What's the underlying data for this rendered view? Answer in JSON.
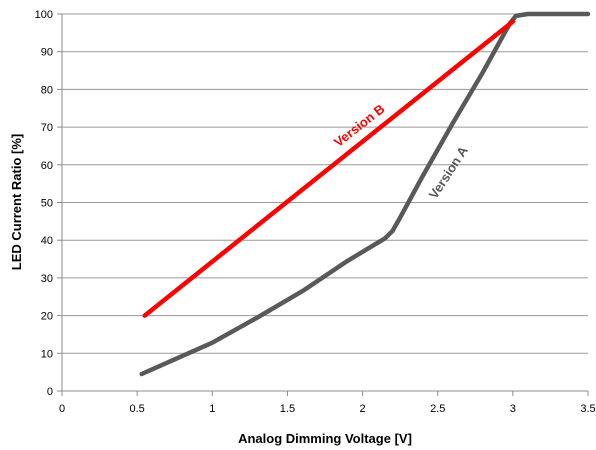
{
  "chart_data": {
    "type": "line",
    "title": "",
    "xlabel": "Analog Dimming Voltage [V]",
    "ylabel": "LED Current Ratio [%]",
    "xlim": [
      0,
      3.5
    ],
    "ylim": [
      0,
      100
    ],
    "x_ticks": [
      "0",
      "0.5",
      "1",
      "1.5",
      "2",
      "2.5",
      "3",
      "3.5"
    ],
    "y_ticks": [
      "0",
      "10",
      "20",
      "30",
      "40",
      "50",
      "60",
      "70",
      "80",
      "90",
      "100"
    ],
    "grid": "horizontal",
    "legend": "none",
    "series": [
      {
        "name": "Version A",
        "color": "#595959",
        "x": [
          0.53,
          0.7,
          1.0,
          1.3,
          1.6,
          1.9,
          2.15,
          2.2,
          2.25,
          2.4,
          2.6,
          2.8,
          2.98,
          3.02,
          3.1,
          3.5
        ],
        "y": [
          4.5,
          7.5,
          12.8,
          19.5,
          26.5,
          34.5,
          40.5,
          42.5,
          46,
          57,
          71,
          84.5,
          97.5,
          99.5,
          100,
          100
        ]
      },
      {
        "name": "Version B",
        "color": "#ff0000",
        "x": [
          0.55,
          3.0
        ],
        "y": [
          20,
          98
        ]
      }
    ]
  }
}
